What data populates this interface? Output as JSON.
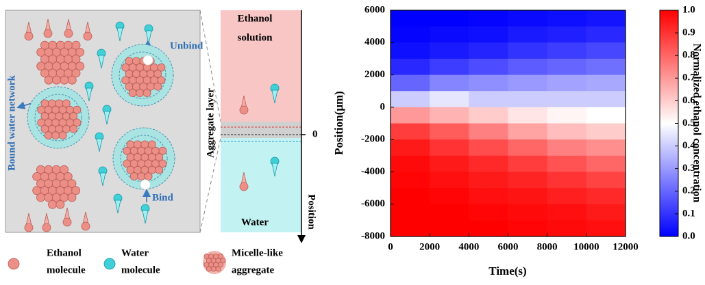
{
  "schematic": {
    "unbind": "Unbind",
    "bind": "Bind",
    "bound_water": "Bound water network",
    "aggregate_layer": "Aggregate layer",
    "ethanol_solution": [
      "Ethanol",
      "solution"
    ],
    "water": "Water",
    "zero": "0",
    "position": "Position"
  },
  "legend": [
    [
      "Ethanol",
      "molecule"
    ],
    [
      "Water",
      "molecule"
    ],
    [
      "Micelle-like",
      "aggregate"
    ]
  ],
  "chart_data": {
    "type": "heatmap",
    "xlabel": "Time(s)",
    "ylabel": "Position(μm)",
    "colorbar_label": "Normalized ethanol concentration",
    "xlim": [
      0,
      12000
    ],
    "xticks": [
      0,
      2000,
      4000,
      6000,
      8000,
      10000,
      12000
    ],
    "ylim": [
      -8000,
      6000
    ],
    "yticks": [
      -8000,
      -6000,
      -4000,
      -2000,
      0,
      2000,
      4000,
      6000
    ],
    "clim": [
      0,
      1
    ],
    "cticks": [
      {
        "value": 0,
        "label": "0.0"
      },
      0.1,
      0.2,
      0.3,
      0.4,
      0.5,
      0.6,
      0.7,
      0.8,
      0.9,
      {
        "value": 1,
        "label": "1.0"
      }
    ],
    "colormap": [
      "#0000ff",
      "#ffffff",
      "#ff0000"
    ],
    "x_bins": [
      0,
      2000,
      4000,
      6000,
      8000,
      10000,
      12000
    ],
    "y_bins": [
      6000,
      5000,
      4000,
      3000,
      2000,
      1000,
      0,
      -1000,
      -2000,
      -3000,
      -4000,
      -5000,
      -6000,
      -7000,
      -8000
    ],
    "values": [
      [
        0,
        0,
        0.01,
        0.02,
        0.03,
        0.04
      ],
      [
        0.01,
        0.02,
        0.03,
        0.05,
        0.06,
        0.08
      ],
      [
        0.03,
        0.05,
        0.07,
        0.1,
        0.12,
        0.14
      ],
      [
        0.08,
        0.12,
        0.15,
        0.18,
        0.2,
        0.22
      ],
      [
        0.2,
        0.26,
        0.28,
        0.3,
        0.32,
        0.33
      ],
      [
        0.4,
        0.45,
        0.4,
        0.4,
        0.4,
        0.4
      ],
      [
        0.7,
        0.65,
        0.6,
        0.55,
        0.52,
        0.5
      ],
      [
        0.88,
        0.82,
        0.75,
        0.68,
        0.63,
        0.6
      ],
      [
        0.95,
        0.9,
        0.85,
        0.8,
        0.75,
        0.72
      ],
      [
        0.98,
        0.95,
        0.92,
        0.88,
        0.84,
        0.8
      ],
      [
        0.99,
        0.97,
        0.95,
        0.93,
        0.9,
        0.87
      ],
      [
        1,
        0.99,
        0.97,
        0.96,
        0.94,
        0.92
      ],
      [
        1,
        1,
        0.99,
        0.98,
        0.97,
        0.95
      ],
      [
        1,
        1,
        1,
        0.99,
        0.98,
        0.97
      ]
    ]
  }
}
